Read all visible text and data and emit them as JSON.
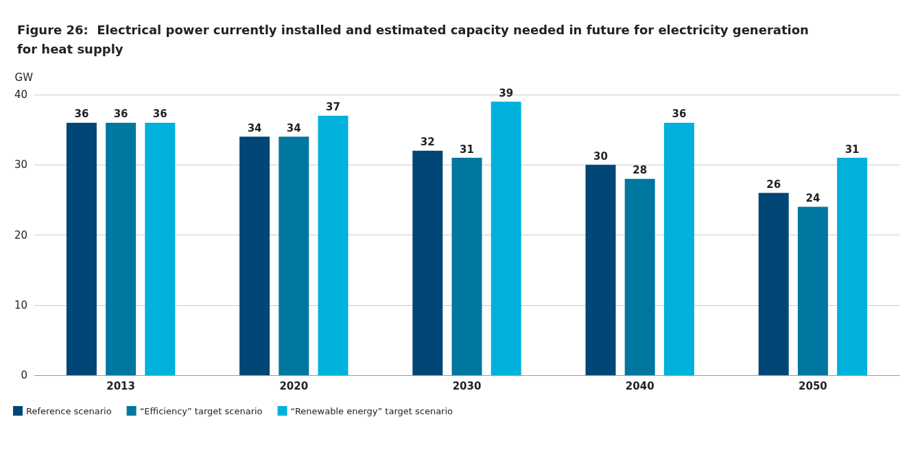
{
  "chart_data": {
    "type": "bar",
    "title": "Figure 26:  Electrical power currently installed and estimated capacity needed in future for electricity generation\nfor heat supply",
    "ylabel": "GW",
    "categories": [
      "2013",
      "2020",
      "2030",
      "2040",
      "2050"
    ],
    "series": [
      {
        "name": "Reference scenario",
        "color": "#004677",
        "values": [
          36,
          34,
          32,
          30,
          26
        ]
      },
      {
        "name": "“Efficiency” target scenario",
        "color": "#0077a0",
        "values": [
          36,
          34,
          31,
          28,
          24
        ]
      },
      {
        "name": "“Renewable energy” target scenario",
        "color": "#00b1dc",
        "values": [
          36,
          37,
          39,
          36,
          31
        ]
      }
    ],
    "ylim": [
      0,
      40
    ],
    "yticks": [
      0,
      10,
      20,
      30,
      40
    ],
    "grid": "y",
    "legend": "bottom left",
    "data_labels": true
  }
}
